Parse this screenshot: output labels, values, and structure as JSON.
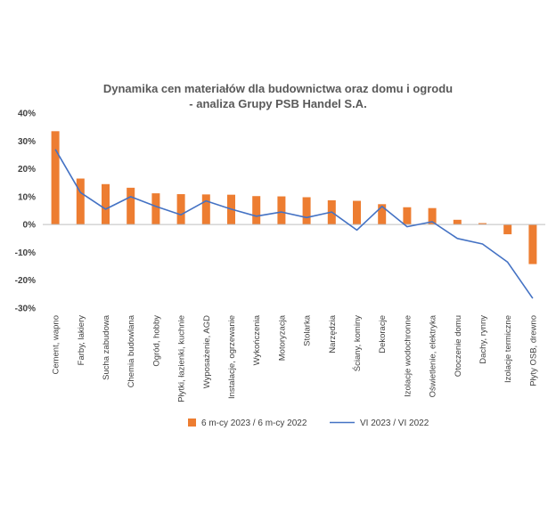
{
  "chart_data": {
    "type": "bar",
    "title_lines": [
      "Dynamika cen materiałów dla budownictwa oraz domu i ogrodu",
      "- analiza Grupy PSB Handel S.A."
    ],
    "categories": [
      "Cement, wapno",
      "Farby, lakiery",
      "Sucha zabudowa",
      "Chemia budowlana",
      "Ogród, hobby",
      "Płytki, łazienki, kuchnie",
      "Wyposażenie, AGD",
      "Instalacje, ogrzewanie",
      "Wykończenia",
      "Motoryzacja",
      "Stolarka",
      "Narzędzia",
      "Ściany, kominy",
      "Dekoracje",
      "Izolacje wodochronne",
      "Oświetlenie, elektryka",
      "Otoczenie domu",
      "Dachy, rynny",
      "Izolacje termiczne",
      "Płyty OSB, drewno"
    ],
    "series": [
      {
        "name": "6 m-cy 2023 / 6 m-cy 2022",
        "type": "bar",
        "color": "#ED7D31",
        "values": [
          33.5,
          16.5,
          14.5,
          13.2,
          11.2,
          10.9,
          10.8,
          10.7,
          10.2,
          10.1,
          9.8,
          8.7,
          8.5,
          7.3,
          6.2,
          5.9,
          1.7,
          0.5,
          -3.5,
          -14.2
        ]
      },
      {
        "name": "VI 2023 / VI 2022",
        "type": "line",
        "color": "#4472C4",
        "values": [
          27.0,
          11.5,
          5.5,
          10.0,
          6.5,
          3.5,
          8.5,
          5.5,
          3.0,
          4.5,
          2.5,
          4.5,
          -2.0,
          6.5,
          -0.8,
          1.0,
          -5.0,
          -7.0,
          -13.5,
          -26.5
        ]
      }
    ],
    "y_ticks": [
      "40%",
      "30%",
      "20%",
      "10%",
      "0%",
      "-10%",
      "-20%",
      "-30%"
    ],
    "ylim": [
      -30,
      40
    ],
    "grid": false,
    "legend_position": "bottom"
  }
}
